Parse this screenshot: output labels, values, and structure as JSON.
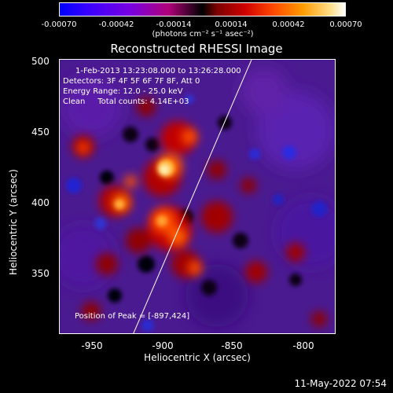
{
  "colorbar": {
    "ticks": [
      "-0.00070",
      "-0.00042",
      "-0.00014",
      "0.00014",
      "0.00042",
      "0.00070"
    ],
    "units": "(photons cm⁻² s⁻¹ asec⁻²)"
  },
  "title": "Reconstructed RHESSI Image",
  "info": {
    "time": "1-Feb-2013 13:23:08.000 to 13:26:28.000",
    "detectors": "Detectors: 3F 4F 5F 6F 7F 8F, Att 0",
    "energy": "Energy Range: 12.0 - 25.0 keV",
    "clean": "Clean     Total counts: 4.14E+03",
    "peak": "Position of Peak = [-897,424]"
  },
  "axes": {
    "xlabel": "Heliocentric X (arcsec)",
    "ylabel": "Heliocentric Y (arcsec)",
    "xticks": [
      "-950",
      "-900",
      "-850",
      "-800"
    ],
    "yticks": [
      "500",
      "450",
      "400",
      "350"
    ]
  },
  "timestamp": "11-May-2022 07:54",
  "colors": {
    "background": "#000000",
    "limb": "#ffffff"
  }
}
